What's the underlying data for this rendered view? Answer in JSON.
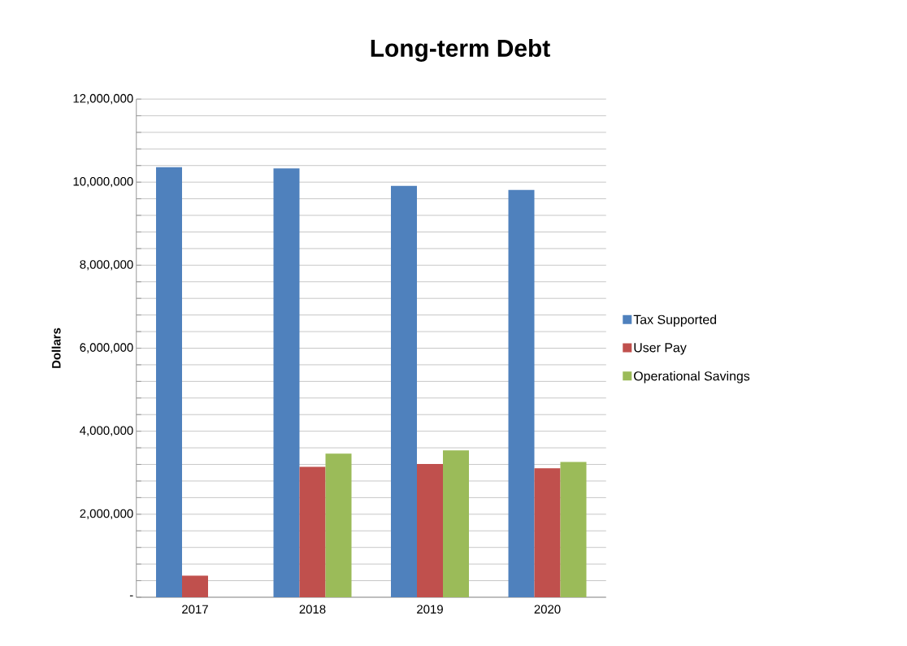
{
  "chart_data": {
    "type": "bar",
    "title": "Long-term Debt",
    "ylabel": "Dollars",
    "categories": [
      "2017",
      "2018",
      "2019",
      "2020"
    ],
    "series": [
      {
        "name": "Tax Supported",
        "color": "#4f81bd",
        "values": [
          10360000,
          10330000,
          9910000,
          9810000
        ]
      },
      {
        "name": "User Pay",
        "color": "#c0504d",
        "values": [
          520000,
          3140000,
          3210000,
          3110000
        ]
      },
      {
        "name": "Operational Savings",
        "color": "#9bbb59",
        "values": [
          null,
          3460000,
          3540000,
          3260000
        ]
      }
    ],
    "ylim": [
      0,
      12000000
    ],
    "yticks": [
      {
        "value": 0,
        "label": "-"
      },
      {
        "value": 400000,
        "label": null
      },
      {
        "value": 800000,
        "label": null
      },
      {
        "value": 1200000,
        "label": null
      },
      {
        "value": 1600000,
        "label": null
      },
      {
        "value": 2000000,
        "label": "2,000,000"
      },
      {
        "value": 2400000,
        "label": null
      },
      {
        "value": 2800000,
        "label": null
      },
      {
        "value": 3200000,
        "label": null
      },
      {
        "value": 3600000,
        "label": null
      },
      {
        "value": 4000000,
        "label": "4,000,000"
      },
      {
        "value": 4400000,
        "label": null
      },
      {
        "value": 4800000,
        "label": null
      },
      {
        "value": 5200000,
        "label": null
      },
      {
        "value": 5600000,
        "label": null
      },
      {
        "value": 6000000,
        "label": "6,000,000"
      },
      {
        "value": 6400000,
        "label": null
      },
      {
        "value": 6800000,
        "label": null
      },
      {
        "value": 7200000,
        "label": null
      },
      {
        "value": 7600000,
        "label": null
      },
      {
        "value": 8000000,
        "label": "8,000,000"
      },
      {
        "value": 8400000,
        "label": null
      },
      {
        "value": 8800000,
        "label": null
      },
      {
        "value": 9200000,
        "label": null
      },
      {
        "value": 9600000,
        "label": null
      },
      {
        "value": 10000000,
        "label": "10,000,000"
      },
      {
        "value": 10400000,
        "label": null
      },
      {
        "value": 10800000,
        "label": null
      },
      {
        "value": 11200000,
        "label": null
      },
      {
        "value": 11600000,
        "label": null
      },
      {
        "value": 12000000,
        "label": "12,000,000"
      }
    ],
    "grid": "y",
    "legend": "right"
  }
}
